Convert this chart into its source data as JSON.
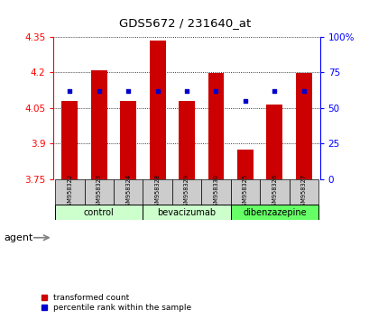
{
  "title": "GDS5672 / 231640_at",
  "samples": [
    "GSM958322",
    "GSM958323",
    "GSM958324",
    "GSM958328",
    "GSM958329",
    "GSM958330",
    "GSM958325",
    "GSM958326",
    "GSM958327"
  ],
  "red_values": [
    4.08,
    4.21,
    4.08,
    4.335,
    4.08,
    4.195,
    3.875,
    4.065,
    4.195
  ],
  "blue_values": [
    62,
    62,
    62,
    62,
    62,
    62,
    55,
    62,
    62
  ],
  "ylim_left": [
    3.75,
    4.35
  ],
  "ylim_right": [
    0,
    100
  ],
  "yticks_left": [
    3.75,
    3.9,
    4.05,
    4.2,
    4.35
  ],
  "yticks_right": [
    0,
    25,
    50,
    75,
    100
  ],
  "ytick_labels_left": [
    "3.75",
    "3.9",
    "4.05",
    "4.2",
    "4.35"
  ],
  "ytick_labels_right": [
    "0",
    "25",
    "50",
    "75",
    "100%"
  ],
  "bar_color": "#cc0000",
  "dot_color": "#0000cc",
  "bar_bottom": 3.75,
  "bar_width": 0.55,
  "group_labels": [
    "control",
    "bevacizumab",
    "dibenzazepine"
  ],
  "group_colors": [
    "#ccffcc",
    "#ccffcc",
    "#66ff66"
  ],
  "group_ranges": [
    [
      0,
      2
    ],
    [
      3,
      5
    ],
    [
      6,
      8
    ]
  ],
  "sample_row_bg": "#cccccc",
  "agent_label": "agent",
  "legend_items": [
    {
      "label": "transformed count",
      "color": "#cc0000"
    },
    {
      "label": "percentile rank within the sample",
      "color": "#0000cc"
    }
  ]
}
